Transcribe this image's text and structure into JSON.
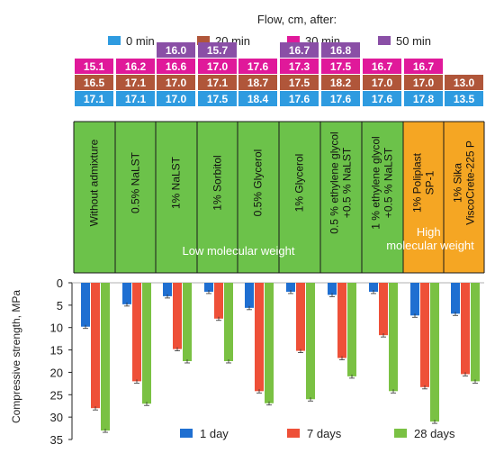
{
  "chart_data": [
    {
      "type": "table",
      "title": "Flow, cm, after:",
      "legend": [
        {
          "name": "0 min",
          "color": "#2e9be0"
        },
        {
          "name": "20 min",
          "color": "#b0563a"
        },
        {
          "name": "30 min",
          "color": "#e0199a"
        },
        {
          "name": "50 min",
          "color": "#8a4fa6"
        }
      ],
      "columns": [
        {
          "label": "Without admixture",
          "values": [
            17.1,
            16.5,
            15.1,
            null
          ]
        },
        {
          "label": "0.5% NaLST",
          "values": [
            17.1,
            17.1,
            16.2,
            null
          ]
        },
        {
          "label": "1% NaLST",
          "values": [
            17.0,
            17.0,
            16.6,
            16.0
          ]
        },
        {
          "label": "1% Sorbitol",
          "values": [
            17.5,
            17.1,
            17.0,
            15.7
          ]
        },
        {
          "label": "0.5% Glycerol",
          "values": [
            18.4,
            18.7,
            17.6,
            null
          ]
        },
        {
          "label": "1% Glycerol",
          "values": [
            17.6,
            17.5,
            17.3,
            16.7
          ]
        },
        {
          "label": "0.5 % ethylene glycol+0.5 % NaLST",
          "values": [
            17.6,
            18.2,
            17.5,
            16.8
          ]
        },
        {
          "label": "1 % ethylene glycol+0.5 % NaLST",
          "values": [
            17.6,
            17.0,
            16.7,
            null
          ]
        },
        {
          "label": "1% Poliplast SP-1",
          "values": [
            17.8,
            17.0,
            16.7,
            null
          ]
        },
        {
          "label": "1% Sika ViscoCrete-225 P",
          "values": [
            13.5,
            13.0,
            null,
            null
          ]
        }
      ],
      "groups": [
        {
          "label": "Low molecular weight",
          "color": "#6cc24a"
        },
        {
          "label": "High molecular weight",
          "color": "#f5a623"
        }
      ]
    },
    {
      "type": "bar",
      "ylabel": "Compressive strength, MPa",
      "ylim": [
        0,
        35
      ],
      "yticks": [
        0,
        5,
        10,
        15,
        20,
        25,
        30,
        35
      ],
      "y_inverted": true,
      "categories": [
        "Without admixture",
        "0.5% NaLST",
        "1% NaLST",
        "1% Sorbitol",
        "0.5% Glycerol",
        "1% Glycerol",
        "0.5 % ethylene glycol+0.5 % NaLST",
        "1 % ethylene glycol+0.5 % NaLST",
        "1% Poliplast SP-1",
        "1% Sika ViscoCrete-225 P"
      ],
      "series": [
        {
          "name": "1 day",
          "color": "#1f6fd1",
          "values": [
            9.8,
            4.8,
            3.0,
            2.0,
            5.6,
            2.0,
            2.7,
            2.0,
            7.3,
            6.9
          ]
        },
        {
          "name": "7 days",
          "color": "#ee5038",
          "values": [
            28.0,
            22.0,
            14.8,
            8.0,
            24.2,
            15.2,
            16.8,
            11.7,
            23.3,
            20.4
          ]
        },
        {
          "name": "28 days",
          "color": "#7ac143",
          "values": [
            33.0,
            27.0,
            17.5,
            17.5,
            26.9,
            26.0,
            20.9,
            24.2,
            31.0,
            22.0
          ]
        }
      ]
    }
  ]
}
